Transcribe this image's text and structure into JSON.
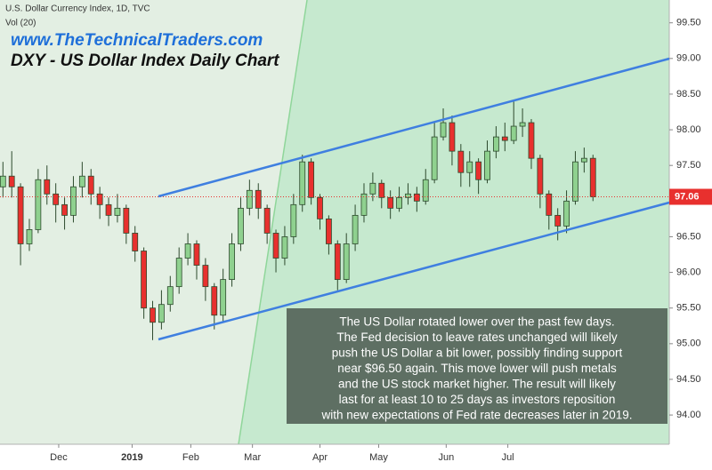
{
  "chart_data": {
    "type": "candlestick",
    "header": "U.S. Dollar Currency Index, 1D, TVC",
    "indicator": "Vol (20)",
    "website": "www.TheTechnicalTraders.com",
    "title": "DXY - US Dollar Index Daily Chart",
    "annotation": [
      "The US Dollar rotated lower over the past few days.",
      "The Fed decision to leave rates unchanged will likely",
      "push the US Dollar a bit lower, possibly finding support",
      "near $96.50 again.  This move lower will push metals",
      "and the US stock market higher.  The result will likely",
      "last for at least 10 to 25 days as investors reposition",
      "with new expectations of Fed rate decreases later in 2019."
    ],
    "up_color": "#8fd18f",
    "down_color": "#e8302e",
    "x": [
      1,
      4,
      7,
      10,
      13,
      16,
      19,
      22,
      25,
      28,
      31,
      34,
      37,
      40,
      43,
      46,
      49,
      52,
      55,
      58,
      61,
      64,
      67,
      70,
      73,
      76,
      79,
      82,
      85,
      88,
      91,
      94,
      97,
      100,
      103,
      106,
      109,
      112,
      115,
      118,
      121,
      124,
      127,
      130,
      133,
      136,
      139,
      142,
      145,
      148,
      151,
      154,
      157,
      160,
      163,
      166,
      169,
      172,
      175,
      178,
      181,
      184,
      187,
      190,
      193,
      196,
      199,
      202
    ],
    "open": [
      97.2,
      97.35,
      97.2,
      96.4,
      96.6,
      97.3,
      97.1,
      96.95,
      96.8,
      97.2,
      97.35,
      97.1,
      96.95,
      96.8,
      96.9,
      96.55,
      96.3,
      95.5,
      95.3,
      95.55,
      95.8,
      96.2,
      96.4,
      96.1,
      95.8,
      95.4,
      95.9,
      96.4,
      96.9,
      97.15,
      96.9,
      96.55,
      96.2,
      96.5,
      96.95,
      97.55,
      97.05,
      96.75,
      96.4,
      95.9,
      96.4,
      96.8,
      97.1,
      97.25,
      97.05,
      96.9,
      97.05,
      97.1,
      97.0,
      97.3,
      97.9,
      98.1,
      97.7,
      97.4,
      97.55,
      97.3,
      97.7,
      97.9,
      97.85,
      98.05,
      98.1,
      97.6,
      97.1,
      96.8,
      96.65,
      97.0,
      97.55,
      97.6
    ],
    "high": [
      97.55,
      97.7,
      97.25,
      96.75,
      97.45,
      97.5,
      97.25,
      97.05,
      97.35,
      97.55,
      97.45,
      97.2,
      97.05,
      97.1,
      96.95,
      96.65,
      96.35,
      95.6,
      95.75,
      95.95,
      96.35,
      96.55,
      96.45,
      96.2,
      95.85,
      96.05,
      96.55,
      97.05,
      97.3,
      97.25,
      96.95,
      96.6,
      96.65,
      97.1,
      97.65,
      97.6,
      97.1,
      96.8,
      96.45,
      96.55,
      96.95,
      97.25,
      97.4,
      97.3,
      97.15,
      97.2,
      97.25,
      97.2,
      97.45,
      98.1,
      98.3,
      98.2,
      97.8,
      97.7,
      97.6,
      97.85,
      98.05,
      98.1,
      98.4,
      98.3,
      98.15,
      97.65,
      97.15,
      96.9,
      97.15,
      97.7,
      97.75,
      97.65
    ],
    "low": [
      97.05,
      97.05,
      96.1,
      96.3,
      96.55,
      96.95,
      96.7,
      96.6,
      96.7,
      97.05,
      96.95,
      96.75,
      96.65,
      96.7,
      96.4,
      96.15,
      95.35,
      95.05,
      95.2,
      95.45,
      95.7,
      96.1,
      95.9,
      95.6,
      95.2,
      95.3,
      95.8,
      96.3,
      96.8,
      96.75,
      96.4,
      96.0,
      96.1,
      96.4,
      96.85,
      96.95,
      96.6,
      96.25,
      95.75,
      95.85,
      96.3,
      96.7,
      97.0,
      96.9,
      96.75,
      96.85,
      96.95,
      96.85,
      96.95,
      97.25,
      97.85,
      97.5,
      97.2,
      97.2,
      97.1,
      97.25,
      97.6,
      97.7,
      97.8,
      97.9,
      97.45,
      96.9,
      96.6,
      96.45,
      96.55,
      96.95,
      97.4,
      97.0
    ],
    "close": [
      97.35,
      97.2,
      96.4,
      96.6,
      97.3,
      97.1,
      96.95,
      96.8,
      97.2,
      97.35,
      97.1,
      96.95,
      96.8,
      96.9,
      96.55,
      96.3,
      95.5,
      95.3,
      95.55,
      95.8,
      96.2,
      96.4,
      96.1,
      95.8,
      95.4,
      95.9,
      96.4,
      96.9,
      97.15,
      96.9,
      96.55,
      96.2,
      96.5,
      96.95,
      97.55,
      97.05,
      96.75,
      96.4,
      95.9,
      96.4,
      96.8,
      97.1,
      97.25,
      97.05,
      96.9,
      97.05,
      97.1,
      97.0,
      97.3,
      97.9,
      98.1,
      97.7,
      97.4,
      97.55,
      97.3,
      97.7,
      97.9,
      97.85,
      98.05,
      98.1,
      97.6,
      97.1,
      96.8,
      96.65,
      97.0,
      97.55,
      97.6,
      97.06
    ],
    "xlim": [
      0,
      228
    ],
    "xticks": [
      {
        "value": 20,
        "label": "Dec"
      },
      {
        "value": 45,
        "label": "2019"
      },
      {
        "value": 65,
        "label": "Feb"
      },
      {
        "value": 86,
        "label": "Mar"
      },
      {
        "value": 109,
        "label": "Apr"
      },
      {
        "value": 129,
        "label": "May"
      },
      {
        "value": 152,
        "label": "Jun"
      },
      {
        "value": 173,
        "label": "Jul"
      }
    ],
    "ylim": [
      93.59,
      99.82
    ],
    "yticks": [
      {
        "value": 94,
        "label": "94.00"
      },
      {
        "value": 94.5,
        "label": "94.50"
      },
      {
        "value": 95,
        "label": "95.00"
      },
      {
        "value": 95.5,
        "label": "95.50"
      },
      {
        "value": 96,
        "label": "96.00"
      },
      {
        "value": 96.5,
        "label": "96.50"
      },
      {
        "value": 97,
        "label": "97.00"
      },
      {
        "value": 97.5,
        "label": "97.50"
      },
      {
        "value": 98,
        "label": "98.00"
      },
      {
        "value": 98.5,
        "label": "98.50"
      },
      {
        "value": 99,
        "label": "99.00"
      },
      {
        "value": 99.5,
        "label": "99.50"
      }
    ]
  }
}
